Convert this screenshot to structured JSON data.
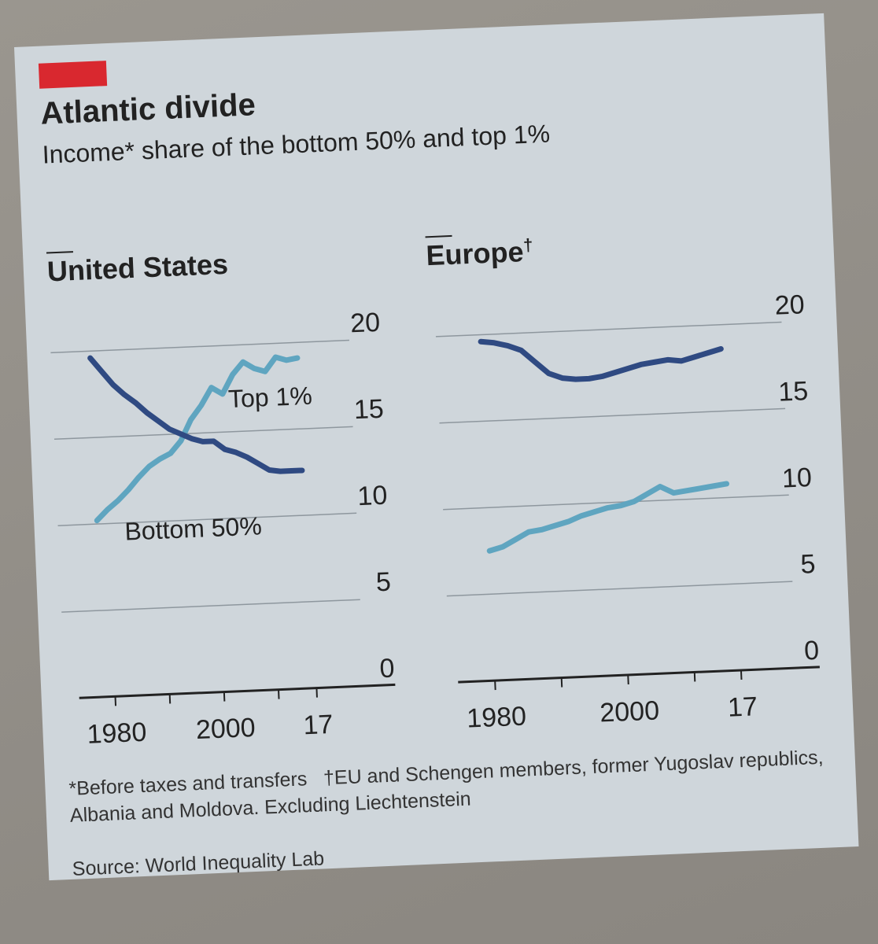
{
  "title": "Atlantic divide",
  "subtitle": "Income* share of the bottom 50% and top 1%",
  "footnotes": [
    "*Before taxes and transfers",
    "†EU and Schengen members, former Yugoslav republics, Albania and Moldova. Excluding Liechtenstein",
    "Source: World Inequality Lab"
  ],
  "colors": {
    "top1": "#5fa5c0",
    "bottom50": "#2f4a82",
    "accent": "#d9282f"
  },
  "chart_data": [
    {
      "type": "line",
      "title": "United States",
      "ylim": [
        0,
        20
      ],
      "yticks": [
        0,
        5,
        10,
        15,
        20
      ],
      "xlim": [
        1978,
        2017
      ],
      "xtick_labels": [
        "1980",
        "2000",
        "17"
      ],
      "series": [
        {
          "name": "Top 1%",
          "label_text": "Top 1%",
          "color": "#5fa5c0",
          "x": [
            1978,
            1980,
            1982,
            1984,
            1986,
            1988,
            1990,
            1992,
            1994,
            1996,
            1998,
            2000,
            2002,
            2004,
            2006,
            2008,
            2010,
            2012,
            2014,
            2016
          ],
          "values": [
            10.2,
            10.8,
            11.3,
            11.9,
            12.6,
            13.2,
            13.6,
            13.9,
            14.6,
            15.8,
            16.6,
            17.6,
            17.2,
            18.3,
            19.0,
            18.6,
            18.4,
            19.2,
            19.0,
            19.1
          ]
        },
        {
          "name": "Bottom 50%",
          "label_text": "Bottom 50%",
          "color": "#2f4a82",
          "x": [
            1978,
            1980,
            1982,
            1984,
            1986,
            1988,
            1990,
            1992,
            1994,
            1996,
            1998,
            2000,
            2002,
            2004,
            2006,
            2008,
            2010,
            2012,
            2014,
            2016
          ],
          "values": [
            19.6,
            18.8,
            18.0,
            17.4,
            16.9,
            16.3,
            15.8,
            15.3,
            15.0,
            14.7,
            14.5,
            14.5,
            14.0,
            13.8,
            13.5,
            13.1,
            12.7,
            12.6,
            12.6,
            12.6
          ]
        }
      ]
    },
    {
      "type": "line",
      "title": "Europe",
      "title_mark": "†",
      "ylim": [
        0,
        20
      ],
      "yticks": [
        0,
        5,
        10,
        15,
        20
      ],
      "xlim": [
        1978,
        2017
      ],
      "xtick_labels": [
        "1980",
        "2000",
        "17"
      ],
      "series": [
        {
          "name": "Top 1%",
          "color": "#5fa5c0",
          "x": [
            1980,
            1982,
            1984,
            1986,
            1988,
            1990,
            1992,
            1994,
            1996,
            1998,
            2000,
            2002,
            2004,
            2006,
            2008,
            2010,
            2012,
            2014,
            2016
          ],
          "values": [
            7.5,
            7.7,
            8.1,
            8.5,
            8.6,
            8.8,
            9.0,
            9.3,
            9.5,
            9.7,
            9.8,
            10.0,
            10.4,
            10.8,
            10.4,
            10.5,
            10.6,
            10.7,
            10.8
          ]
        },
        {
          "name": "Bottom 50%",
          "color": "#2f4a82",
          "x": [
            1980,
            1982,
            1984,
            1986,
            1988,
            1990,
            1992,
            1994,
            1996,
            1998,
            2000,
            2002,
            2004,
            2006,
            2008,
            2010,
            2012,
            2014,
            2016
          ],
          "values": [
            19.6,
            19.5,
            19.3,
            19.0,
            18.3,
            17.6,
            17.3,
            17.2,
            17.2,
            17.3,
            17.5,
            17.7,
            17.9,
            18.0,
            18.1,
            18.0,
            18.2,
            18.4,
            18.6
          ]
        }
      ]
    }
  ]
}
